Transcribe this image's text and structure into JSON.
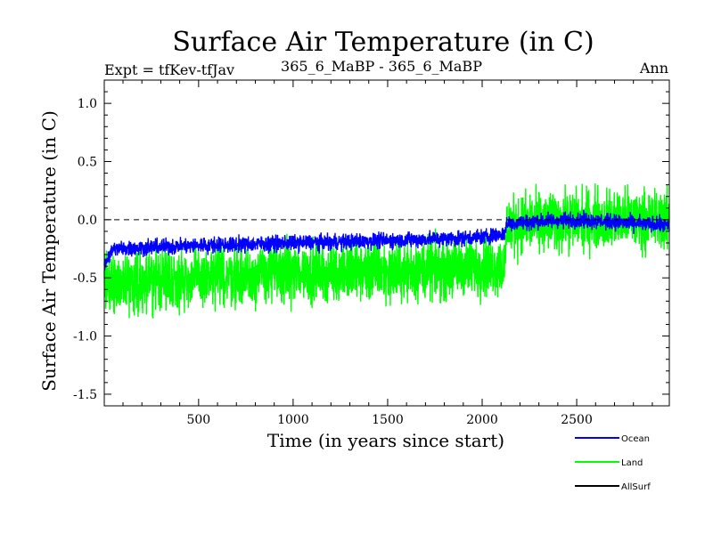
{
  "chart_data": {
    "type": "line",
    "title": "Surface Air Temperature (in C)",
    "subtitle_left": "Expt = tfKev-tfJav",
    "subtitle_center": "365_6_MaBP - 365_6_MaBP",
    "subtitle_right": "Ann",
    "xlabel": "Time (in years since start)",
    "ylabel": "Surface Air Temperature (in C)",
    "xlim": [
      1,
      2990
    ],
    "ylim": [
      -1.6,
      1.2
    ],
    "x_ticks": [
      {
        "value": 500,
        "label": "500"
      },
      {
        "value": 1000,
        "label": "1000"
      },
      {
        "value": 1500,
        "label": "1500"
      },
      {
        "value": 2000,
        "label": "2000"
      },
      {
        "value": 2500,
        "label": "2500"
      }
    ],
    "y_ticks": [
      {
        "value": 1.0,
        "label": "1.0"
      },
      {
        "value": 0.5,
        "label": "0.5"
      },
      {
        "value": 0.0,
        "label": "0.0"
      },
      {
        "value": -0.5,
        "label": "-0.5"
      },
      {
        "value": -1.0,
        "label": "-1.0"
      },
      {
        "value": -1.5,
        "label": "-1.5"
      }
    ],
    "reference_line_y": 0.0,
    "legend_position": "bottom-right",
    "series": [
      {
        "name": "Land",
        "color": "#00ff00",
        "mean_x": [
          0,
          500,
          1000,
          1500,
          2000,
          2120,
          2130,
          2500,
          2990
        ],
        "mean_y": [
          -0.55,
          -0.5,
          -0.45,
          -0.45,
          -0.4,
          -0.4,
          -0.05,
          0.0,
          0.0
        ],
        "amplitude": 0.38
      },
      {
        "name": "Ocean",
        "color": "#0000ff",
        "mean_x": [
          0,
          50,
          500,
          1000,
          1500,
          2000,
          2120,
          2130,
          2500,
          2990
        ],
        "mean_y": [
          -0.38,
          -0.25,
          -0.22,
          -0.2,
          -0.18,
          -0.15,
          -0.12,
          -0.03,
          0.0,
          -0.05
        ],
        "amplitude": 0.1
      },
      {
        "name": "AllSurf",
        "color": "#000000",
        "mean_x": [
          0,
          500,
          1000,
          1500,
          2000,
          2120,
          2130,
          2500,
          2990
        ],
        "mean_y": [
          -0.3,
          -0.28,
          -0.25,
          -0.23,
          -0.2,
          -0.18,
          -0.05,
          0.0,
          -0.03
        ],
        "amplitude": 0.0
      }
    ]
  }
}
